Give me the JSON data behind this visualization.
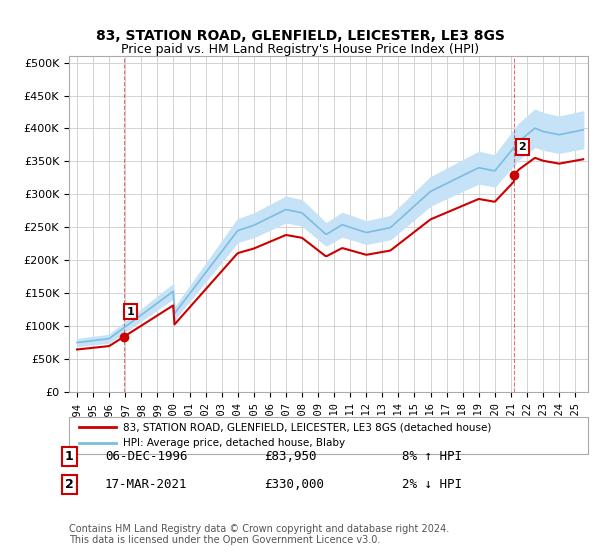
{
  "title": "83, STATION ROAD, GLENFIELD, LEICESTER, LE3 8GS",
  "subtitle": "Price paid vs. HM Land Registry's House Price Index (HPI)",
  "xlim": [
    1993.5,
    2025.8
  ],
  "ylim": [
    0,
    510000
  ],
  "yticks": [
    0,
    50000,
    100000,
    150000,
    200000,
    250000,
    300000,
    350000,
    400000,
    450000,
    500000
  ],
  "ytick_labels": [
    "£0",
    "£50K",
    "£100K",
    "£150K",
    "£200K",
    "£250K",
    "£300K",
    "£350K",
    "£400K",
    "£450K",
    "£500K"
  ],
  "xticks": [
    1994,
    1995,
    1996,
    1997,
    1998,
    1999,
    2000,
    2001,
    2002,
    2003,
    2004,
    2005,
    2006,
    2007,
    2008,
    2009,
    2010,
    2011,
    2012,
    2013,
    2014,
    2015,
    2016,
    2017,
    2018,
    2019,
    2020,
    2021,
    2022,
    2023,
    2024,
    2025
  ],
  "hpi_color": "#c6e2f7",
  "hpi_line_color": "#7bbde0",
  "price_color": "#cc0000",
  "marker1_x": 1996.92,
  "marker1_y": 83950,
  "marker1_label": "1",
  "marker1_date": "06-DEC-1996",
  "marker1_price": "£83,950",
  "marker1_hpi": "8% ↑ HPI",
  "marker2_x": 2021.21,
  "marker2_y": 330000,
  "marker2_label": "2",
  "marker2_date": "17-MAR-2021",
  "marker2_price": "£330,000",
  "marker2_hpi": "2% ↓ HPI",
  "legend_line1": "83, STATION ROAD, GLENFIELD, LEICESTER, LE3 8GS (detached house)",
  "legend_line2": "HPI: Average price, detached house, Blaby",
  "footer": "Contains HM Land Registry data © Crown copyright and database right 2024.\nThis data is licensed under the Open Government Licence v3.0.",
  "bg_color": "#ffffff",
  "grid_color": "#cccccc",
  "vline_color": "#cc0000"
}
